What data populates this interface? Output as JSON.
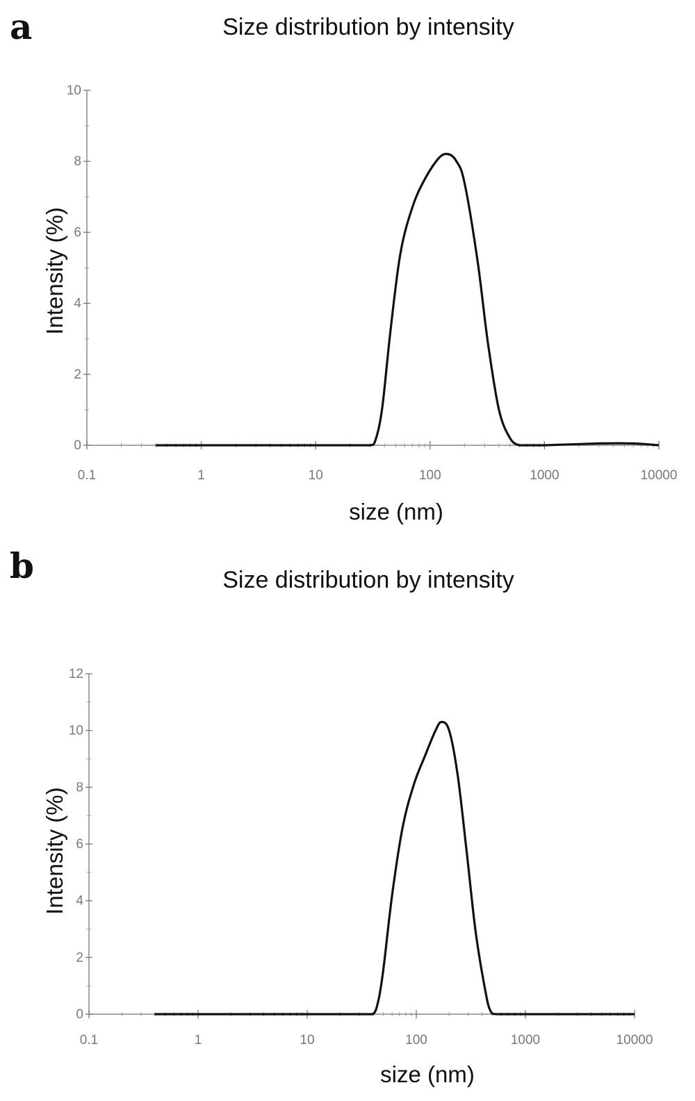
{
  "chart_data": [
    {
      "type": "line",
      "panel_label": "a",
      "title": "Size distribution by intensity",
      "xlabel": "size (nm)",
      "ylabel": "Intensity (%)",
      "xscale": "log",
      "xlim": [
        0.1,
        10000
      ],
      "ylim": [
        0,
        10
      ],
      "xticks": [
        0.1,
        1,
        10,
        100,
        1000,
        10000
      ],
      "xtick_labels": [
        "0.1",
        "1",
        "10",
        "100",
        "1000",
        "10000"
      ],
      "yticks": [
        0,
        2,
        4,
        6,
        8,
        10
      ],
      "ytick_labels": [
        "0",
        "2",
        "4",
        "6",
        "8",
        "10"
      ],
      "grid": false,
      "series": [
        {
          "x": [
            0.4,
            1,
            5,
            10,
            20,
            30,
            33,
            38,
            45,
            55,
            70,
            90,
            120,
            145,
            170,
            200,
            260,
            320,
            400,
            500,
            600,
            700,
            1000,
            3000,
            6000,
            10000
          ],
          "y": [
            0,
            0,
            0,
            0,
            0,
            0,
            0.1,
            1.0,
            3.2,
            5.4,
            6.7,
            7.5,
            8.1,
            8.2,
            8.0,
            7.4,
            5.2,
            2.9,
            1.0,
            0.2,
            0,
            0,
            0,
            0.05,
            0.05,
            0
          ]
        }
      ]
    },
    {
      "type": "line",
      "panel_label": "b",
      "title": "Size distribution by intensity",
      "xlabel": "size (nm)",
      "ylabel": "Intensity (%)",
      "xscale": "log",
      "xlim": [
        0.1,
        10000
      ],
      "ylim": [
        0,
        12
      ],
      "xticks": [
        0.1,
        1,
        10,
        100,
        1000,
        10000
      ],
      "xtick_labels": [
        "0.1",
        "1",
        "10",
        "100",
        "1000",
        "10000"
      ],
      "yticks": [
        0,
        2,
        4,
        6,
        8,
        10,
        12
      ],
      "ytick_labels": [
        "0",
        "2",
        "4",
        "6",
        "8",
        "10",
        "12"
      ],
      "grid": false,
      "series": [
        {
          "x": [
            0.4,
            1,
            10,
            30,
            40,
            45,
            50,
            60,
            75,
            95,
            120,
            150,
            170,
            200,
            240,
            290,
            350,
            430,
            480,
            550,
            1000,
            10000
          ],
          "y": [
            0,
            0,
            0,
            0,
            0,
            0.5,
            1.6,
            4.2,
            6.6,
            8.1,
            9.1,
            10.0,
            10.3,
            10.0,
            8.4,
            5.7,
            2.9,
            0.8,
            0.1,
            0,
            0,
            0
          ]
        }
      ]
    }
  ]
}
